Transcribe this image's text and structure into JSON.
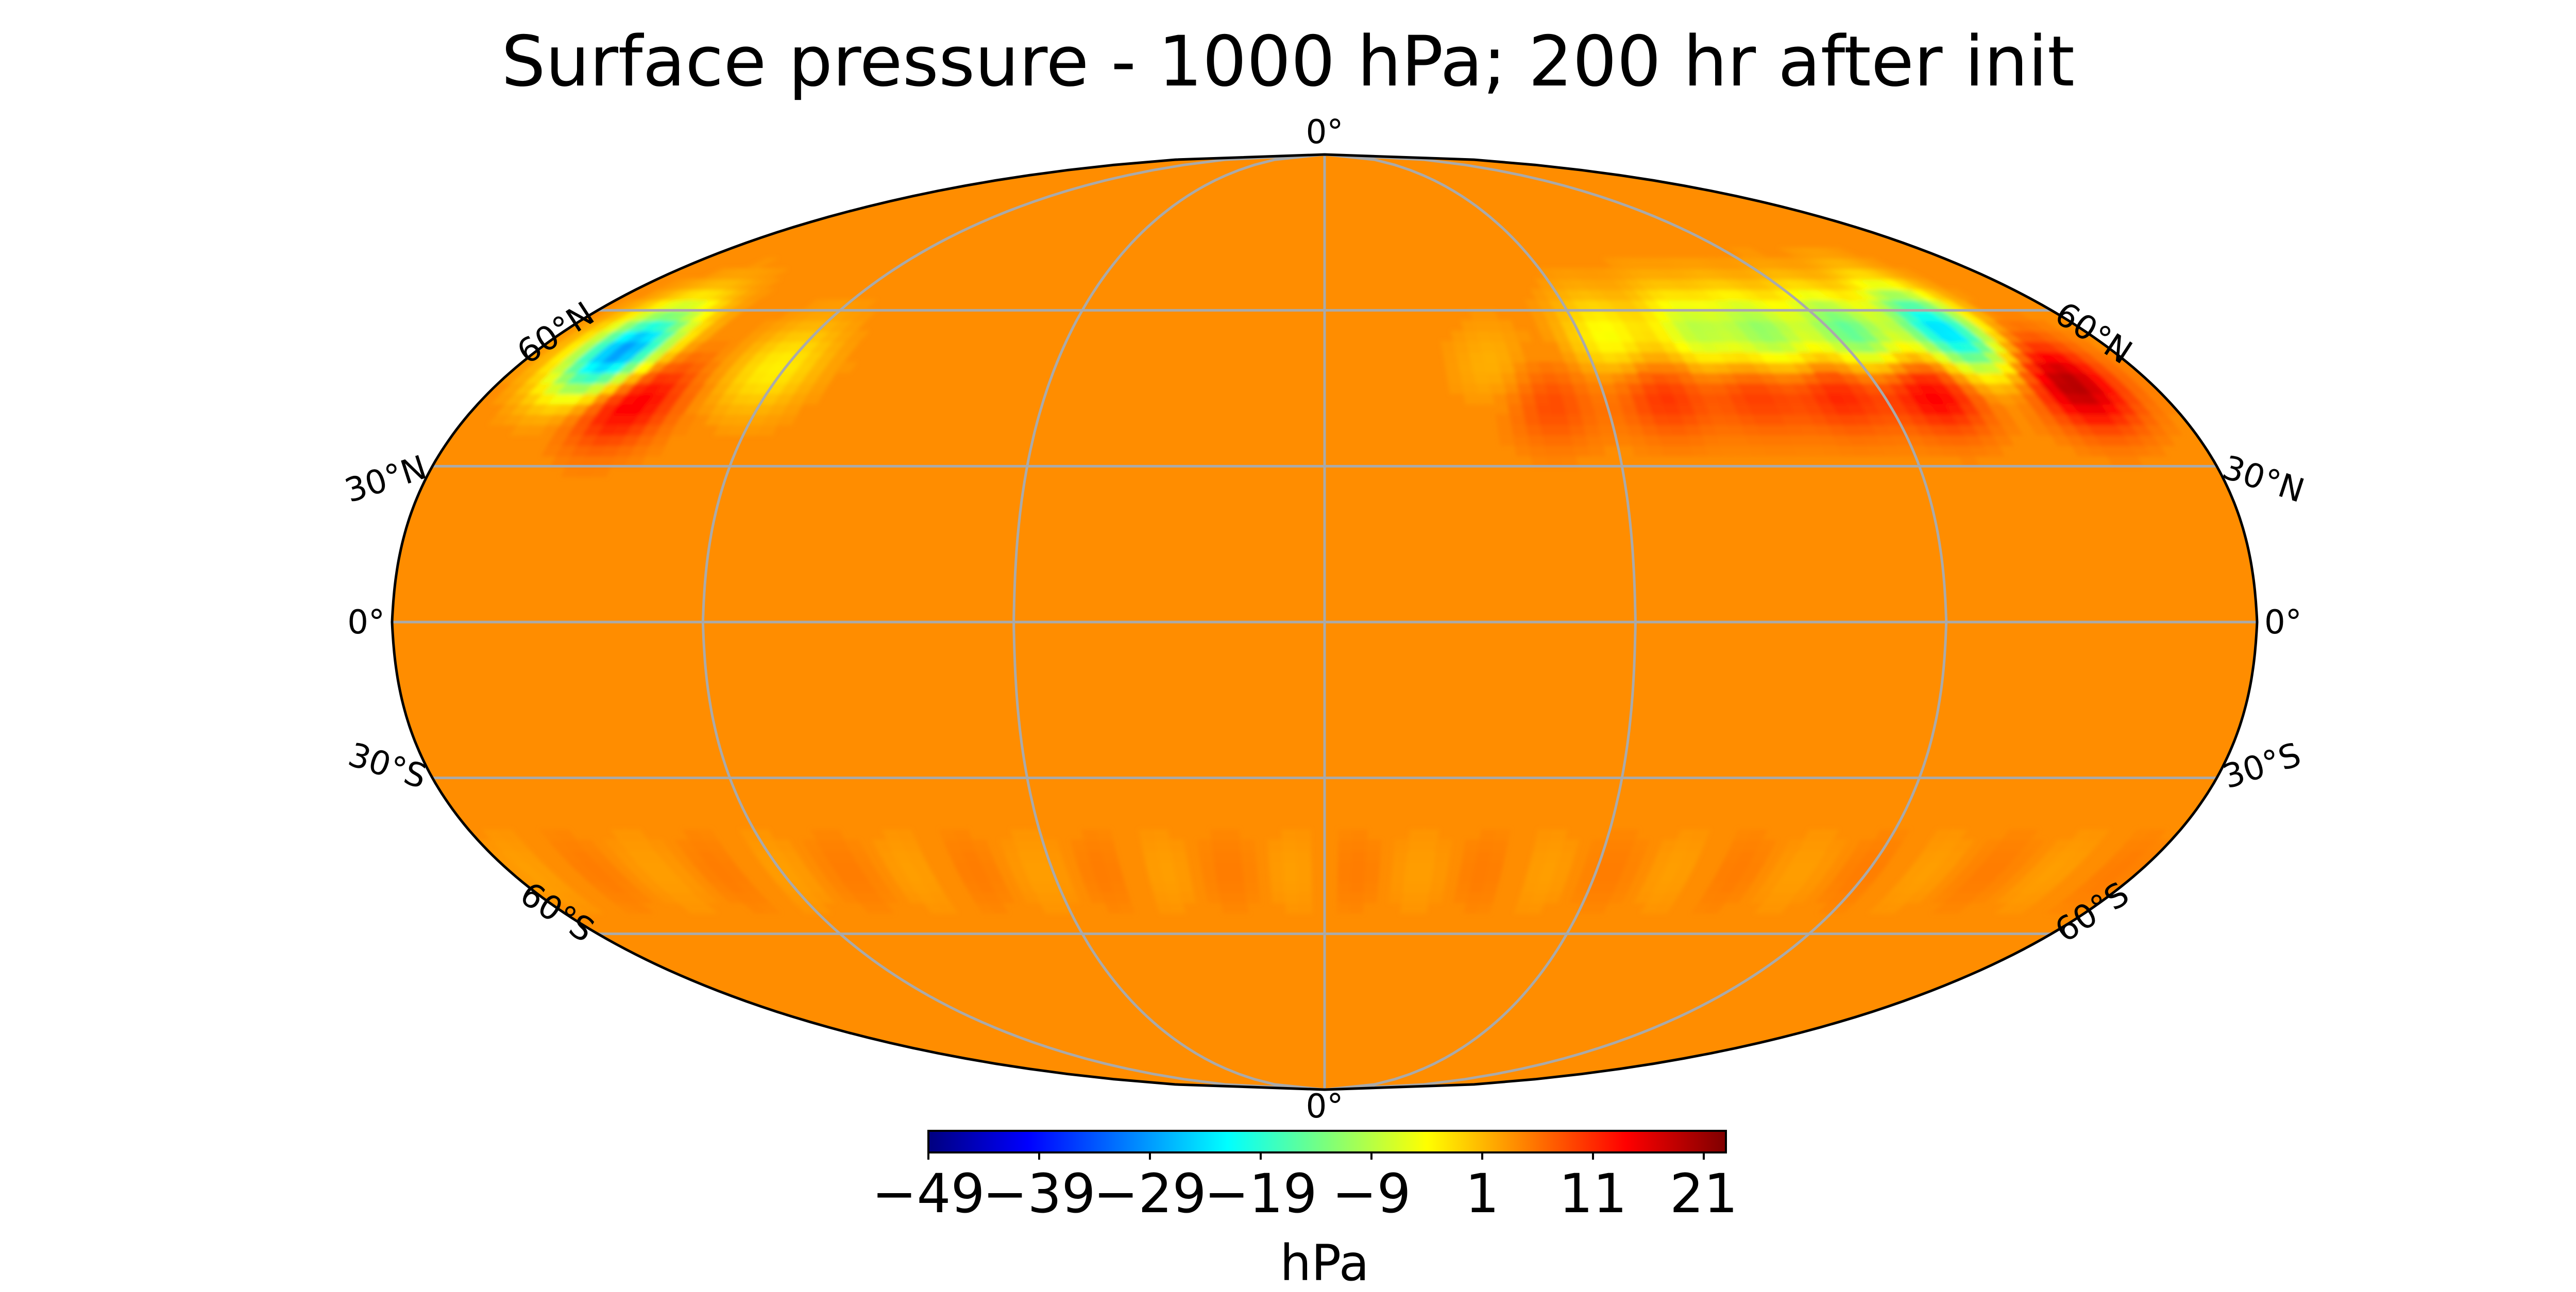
{
  "title": "Surface pressure - 1000 hPa; 200 hr after init",
  "projection": "Robinson",
  "grid": true,
  "map": {
    "lat_labels_left": [
      "60°N",
      "30°N",
      "0°",
      "30°S",
      "60°S"
    ],
    "lat_labels_right": [
      "60°N",
      "30°N",
      "0°",
      "30°S",
      "60°S"
    ],
    "lat_values": [
      60,
      30,
      0,
      -30,
      -60
    ],
    "lon_labels": {
      "top": "0°",
      "bottom": "0°"
    },
    "meridians": [
      -120,
      -60,
      0,
      60,
      120
    ]
  },
  "colorbar": {
    "label": "hPa",
    "colormap": "jet",
    "colormap_stops": [
      "#00007f",
      "#0000ff",
      "#007fff",
      "#00ffff",
      "#7dff7a",
      "#ffff00",
      "#ff7f00",
      "#ff0000",
      "#7f0000"
    ],
    "range": [
      -49,
      23
    ],
    "ticks": [
      -49,
      -39,
      -29,
      -19,
      -9,
      1,
      11,
      21
    ],
    "tick_labels": [
      "−49",
      "−39",
      "−29",
      "−19",
      "−9",
      "1",
      "11",
      "21"
    ]
  },
  "field": {
    "background_value": 4,
    "features": [
      {
        "lon": -160,
        "lat": 52,
        "value": -30
      },
      {
        "lon": -148,
        "lat": 43,
        "value": 16
      },
      {
        "lon": -122,
        "lat": 49,
        "value": -3
      },
      {
        "lon": 40,
        "lat": 48,
        "value": 0
      },
      {
        "lon": 47,
        "lat": 43,
        "value": 10
      },
      {
        "lon": 67,
        "lat": 54,
        "value": -6
      },
      {
        "lon": 72,
        "lat": 45,
        "value": 12
      },
      {
        "lon": 88,
        "lat": 55,
        "value": -10
      },
      {
        "lon": 92,
        "lat": 46,
        "value": 12
      },
      {
        "lon": 105,
        "lat": 55,
        "value": -13
      },
      {
        "lon": 110,
        "lat": 46,
        "value": 14
      },
      {
        "lon": 125,
        "lat": 55,
        "value": -18
      },
      {
        "lon": 130,
        "lat": 46,
        "value": 18
      },
      {
        "lon": 147,
        "lat": 56,
        "value": -25
      },
      {
        "lon": 162,
        "lat": 46,
        "value": 20
      }
    ]
  }
}
